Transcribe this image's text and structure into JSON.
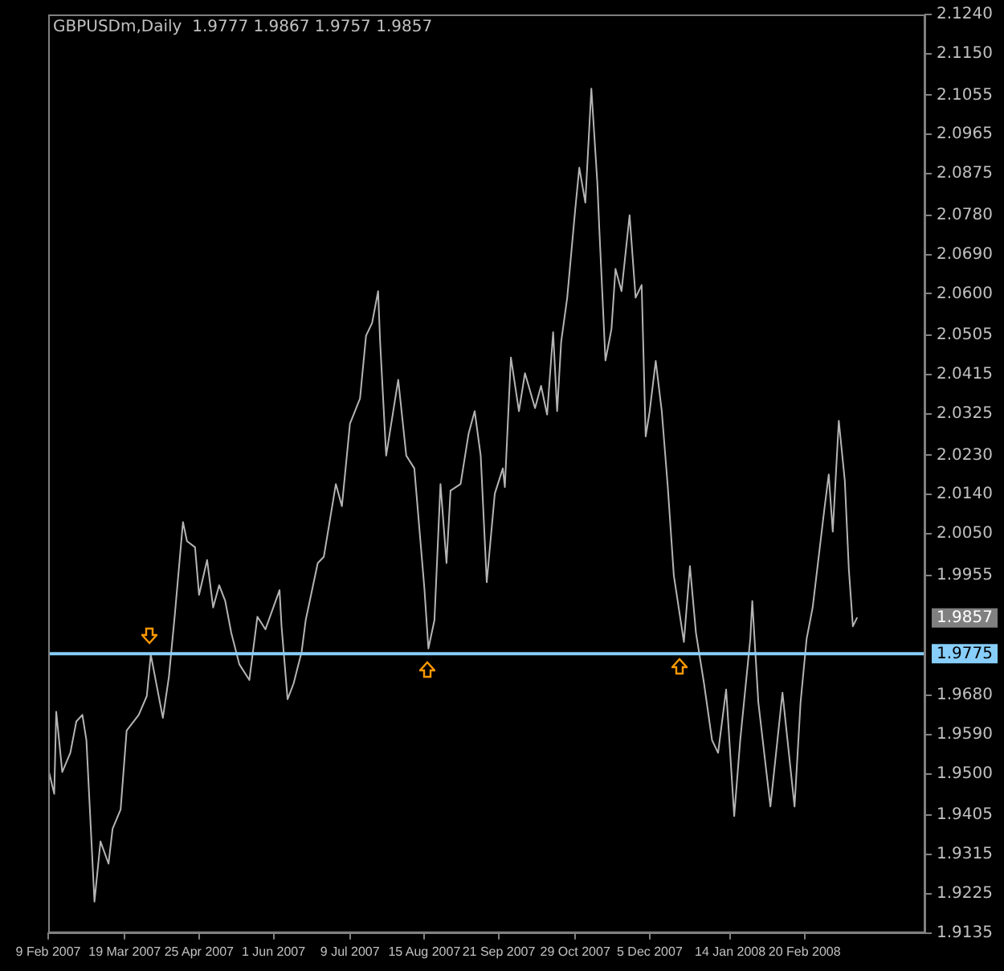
{
  "chart_data": {
    "type": "line",
    "title": "GBPUSDm,Daily  1.9777 1.9867 1.9757 1.9857",
    "x": [
      "2007-02-09",
      "2007-02-12",
      "2007-02-13",
      "2007-02-16",
      "2007-02-20",
      "2007-02-23",
      "2007-02-26",
      "2007-02-28",
      "2007-03-04",
      "2007-03-07",
      "2007-03-11",
      "2007-03-13",
      "2007-03-17",
      "2007-03-20",
      "2007-03-26",
      "2007-03-30",
      "2007-04-01",
      "2007-04-07",
      "2007-04-10",
      "2007-04-13",
      "2007-04-17",
      "2007-04-19",
      "2007-04-23",
      "2007-04-25",
      "2007-04-29",
      "2007-05-02",
      "2007-05-05",
      "2007-05-08",
      "2007-05-11",
      "2007-05-15",
      "2007-05-20",
      "2007-05-24",
      "2007-05-28",
      "2007-06-04",
      "2007-06-05",
      "2007-06-08",
      "2007-06-11",
      "2007-06-15",
      "2007-06-17",
      "2007-06-23",
      "2007-06-26",
      "2007-07-02",
      "2007-07-05",
      "2007-07-09",
      "2007-07-14",
      "2007-07-17",
      "2007-07-20",
      "2007-07-23",
      "2007-07-24",
      "2007-07-27",
      "2007-07-30",
      "2007-08-02",
      "2007-08-06",
      "2007-08-10",
      "2007-08-15",
      "2007-08-17",
      "2007-08-20",
      "2007-08-23",
      "2007-08-26",
      "2007-08-28",
      "2007-09-02",
      "2007-09-06",
      "2007-09-09",
      "2007-09-12",
      "2007-09-15",
      "2007-09-19",
      "2007-09-23",
      "2007-09-24",
      "2007-09-27",
      "2007-10-01",
      "2007-10-04",
      "2007-10-09",
      "2007-10-12",
      "2007-10-15",
      "2007-10-18",
      "2007-10-20",
      "2007-10-22",
      "2007-10-25",
      "2007-10-29",
      "2007-10-31",
      "2007-11-03",
      "2007-11-06",
      "2007-11-09",
      "2007-11-10",
      "2007-11-13",
      "2007-11-16",
      "2007-11-18",
      "2007-11-21",
      "2007-11-25",
      "2007-11-28",
      "2007-12-01",
      "2007-12-03",
      "2007-12-05",
      "2007-12-08",
      "2007-12-11",
      "2007-12-14",
      "2007-12-17",
      "2007-12-22",
      "2007-12-25",
      "2007-12-28",
      "2008-01-01",
      "2008-01-05",
      "2008-01-08",
      "2008-01-12",
      "2008-01-16",
      "2008-01-19",
      "2008-01-24",
      "2008-01-25",
      "2008-01-28",
      "2008-02-03",
      "2008-02-09",
      "2008-02-15",
      "2008-02-18",
      "2008-02-21",
      "2008-02-24",
      "2008-03-01",
      "2008-03-03",
      "2008-03-05",
      "2008-03-08",
      "2008-03-11",
      "2008-03-13",
      "2008-03-15",
      "2008-03-17"
    ],
    "series": [
      {
        "color": "#b4b4b4",
        "values": [
          1.9512,
          1.9454,
          1.9642,
          1.9504,
          1.9548,
          1.962,
          1.9635,
          1.9577,
          1.9207,
          1.9345,
          1.9294,
          1.9374,
          1.9418,
          1.9599,
          1.9635,
          1.9678,
          1.9773,
          1.9628,
          1.9722,
          1.9867,
          2.0077,
          2.0033,
          2.0019,
          1.991,
          1.999,
          1.9881,
          1.9932,
          1.9896,
          1.9823,
          1.9751,
          1.9715,
          1.986,
          1.9831,
          1.9921,
          1.9838,
          1.9671,
          1.9707,
          1.978,
          1.9852,
          1.9983,
          1.9997,
          2.0164,
          2.0113,
          2.0302,
          2.036,
          2.0504,
          2.0533,
          2.0606,
          2.049,
          2.0229,
          2.0316,
          2.0403,
          2.0229,
          2.02,
          1.9925,
          1.9787,
          1.9852,
          2.0164,
          1.9983,
          2.0149,
          2.0164,
          2.028,
          2.0331,
          2.0229,
          1.9939,
          2.0142,
          2.02,
          2.0157,
          2.0454,
          2.0331,
          2.0418,
          2.0338,
          2.0389,
          2.0323,
          2.0512,
          2.0331,
          2.049,
          2.0591,
          2.0794,
          2.0889,
          2.0809,
          2.107,
          2.0852,
          2.0744,
          2.0447,
          2.0519,
          2.0657,
          2.0606,
          2.078,
          2.0591,
          2.062,
          2.0273,
          2.0331,
          2.0446,
          2.0331,
          2.0157,
          1.9954,
          1.9802,
          1.9976,
          1.9823,
          1.9707,
          1.9577,
          1.9548,
          1.9693,
          1.9403,
          1.9577,
          1.9809,
          1.9896,
          1.9664,
          1.9425,
          1.9686,
          1.9425,
          1.9664,
          1.9809,
          1.9881,
          2.0113,
          2.0186,
          2.0055,
          2.0309,
          2.0171,
          1.9968,
          1.9838,
          1.9857
        ]
      }
    ],
    "xlim": [
      "2007-02-09",
      "2008-04-20"
    ],
    "xticks": [
      {
        "value": "2007-02-09",
        "label": "9 Feb 2007"
      },
      {
        "value": "2007-03-19",
        "label": "19 Mar 2007"
      },
      {
        "value": "2007-04-25",
        "label": "25 Apr 2007"
      },
      {
        "value": "2007-06-01",
        "label": "1 Jun 2007"
      },
      {
        "value": "2007-07-09",
        "label": "9 Jul 2007"
      },
      {
        "value": "2007-08-15",
        "label": "15 Aug 2007"
      },
      {
        "value": "2007-09-21",
        "label": "21 Sep 2007"
      },
      {
        "value": "2007-10-29",
        "label": "29 Oct 2007"
      },
      {
        "value": "2007-12-05",
        "label": "5 Dec 2007"
      },
      {
        "value": "2008-01-14",
        "label": "14 Jan 2008"
      },
      {
        "value": "2008-02-20",
        "label": "20 Feb 2008"
      }
    ],
    "ylim": [
      1.9135,
      2.124
    ],
    "yticks": [
      {
        "value": 1.9135,
        "label": "1.9135"
      },
      {
        "value": 1.9225,
        "label": "1.9225"
      },
      {
        "value": 1.9315,
        "label": "1.9315"
      },
      {
        "value": 1.9405,
        "label": "1.9405"
      },
      {
        "value": 1.95,
        "label": "1.9500"
      },
      {
        "value": 1.959,
        "label": "1.9590"
      },
      {
        "value": 1.968,
        "label": "1.9680"
      },
      {
        "value": 1.9955,
        "label": "1.9955"
      },
      {
        "value": 2.005,
        "label": "2.0050"
      },
      {
        "value": 2.014,
        "label": "2.0140"
      },
      {
        "value": 2.023,
        "label": "2.0230"
      },
      {
        "value": 2.0325,
        "label": "2.0325"
      },
      {
        "value": 2.0415,
        "label": "2.0415"
      },
      {
        "value": 2.0505,
        "label": "2.0505"
      },
      {
        "value": 2.06,
        "label": "2.0600"
      },
      {
        "value": 2.069,
        "label": "2.0690"
      },
      {
        "value": 2.078,
        "label": "2.0780"
      },
      {
        "value": 2.0875,
        "label": "2.0875"
      },
      {
        "value": 2.0965,
        "label": "2.0965"
      },
      {
        "value": 2.1055,
        "label": "2.1055"
      },
      {
        "value": 2.115,
        "label": "2.1150"
      },
      {
        "value": 2.124,
        "label": "2.1240"
      }
    ],
    "ref_lines": [
      {
        "axis": "y",
        "value": 1.9775,
        "label": "1.9775",
        "color": "#87cefa"
      }
    ],
    "annotations": [
      "1.9857"
    ]
  }
}
